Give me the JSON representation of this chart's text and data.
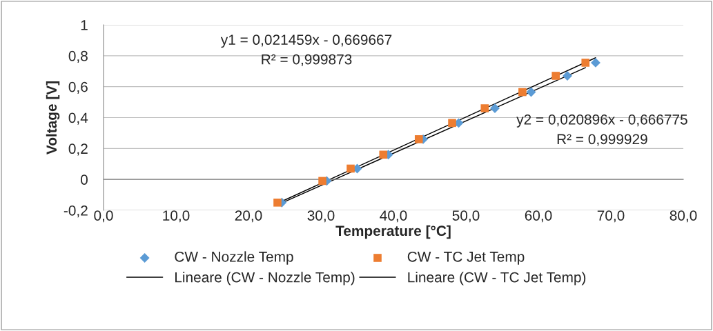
{
  "chart_data": {
    "type": "scatter",
    "xlabel": "Temperature [°C]",
    "ylabel": "Voltage [V]",
    "series": [
      {
        "name": "CW - Nozzle Temp",
        "color": "#5b9bd5",
        "marker": "diamond",
        "x": [
          24.6,
          30.8,
          35.0,
          39.3,
          44.1,
          49.0,
          54.0,
          59.0,
          64.0,
          67.9
        ],
        "values": [
          -0.15,
          -0.01,
          0.07,
          0.16,
          0.26,
          0.365,
          0.46,
          0.565,
          0.67,
          0.755
        ]
      },
      {
        "name": "CW - TC Jet Temp",
        "color": "#ed7d31",
        "marker": "square",
        "x": [
          24.0,
          30.2,
          34.1,
          38.6,
          43.5,
          48.1,
          52.6,
          57.8,
          62.4,
          66.5
        ],
        "values": [
          -0.15,
          -0.01,
          0.07,
          0.16,
          0.26,
          0.365,
          0.46,
          0.565,
          0.67,
          0.755
        ]
      },
      {
        "name": "Lineare (CW - Nozzle Temp)",
        "type": "line",
        "color": "#000000",
        "x": [
          24.6,
          67.9
        ],
        "values": [
          -0.142,
          0.787
        ]
      },
      {
        "name": "Lineare (CW - TC Jet Temp)",
        "type": "line",
        "color": "#000000",
        "x": [
          24.0,
          66.5
        ],
        "values": [
          -0.165,
          0.723
        ]
      }
    ],
    "annotations": [
      "y1 = 0,021459x - 0,669667\nR² = 0,999873",
      "y2 = 0,020896x - 0,666775\nR² = 0,999929"
    ],
    "xlim": [
      0,
      80
    ],
    "ylim": [
      -0.2,
      1
    ],
    "xticks": [
      {
        "value": 0,
        "label": "0,0"
      },
      {
        "value": 10,
        "label": "10,0"
      },
      {
        "value": 20,
        "label": "20,0"
      },
      {
        "value": 30,
        "label": "30,0"
      },
      {
        "value": 40,
        "label": "40,0"
      },
      {
        "value": 50,
        "label": "50,0"
      },
      {
        "value": 60,
        "label": "60,0"
      },
      {
        "value": 70,
        "label": "70,0"
      },
      {
        "value": 80,
        "label": "80,0"
      }
    ],
    "yticks": [
      {
        "value": -0.2,
        "label": "-0,2"
      },
      0,
      {
        "value": 0.2,
        "label": "0,2"
      },
      {
        "value": 0.4,
        "label": "0,4"
      },
      {
        "value": 0.6,
        "label": "0,6"
      },
      {
        "value": 0.8,
        "label": "0,8"
      },
      1
    ],
    "grid": "y",
    "legend": "bottom"
  }
}
